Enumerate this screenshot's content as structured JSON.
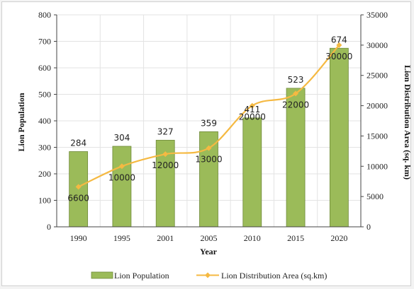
{
  "chart_data": {
    "type": "bar+line",
    "categories": [
      "1990",
      "1995",
      "2001",
      "2005",
      "2010",
      "2015",
      "2020"
    ],
    "xlabel": "Year",
    "ylabel_left": "Lion Population",
    "ylabel_right": "Lion Distribution Area (sq. km)",
    "ylim_left": [
      0,
      800
    ],
    "yticks_left": [
      0,
      100,
      200,
      300,
      400,
      500,
      600,
      700,
      800
    ],
    "ylim_right": [
      0,
      35000
    ],
    "yticks_right": [
      0,
      5000,
      10000,
      15000,
      20000,
      25000,
      30000,
      35000
    ],
    "grid": true,
    "legend_position": "bottom",
    "series": [
      {
        "name": "Lion Population",
        "kind": "bar",
        "axis": "left",
        "color": "#9bbb59",
        "values": [
          284,
          304,
          327,
          359,
          411,
          523,
          674
        ],
        "labels": [
          "284",
          "304",
          "327",
          "359",
          "411",
          "523",
          "674"
        ]
      },
      {
        "name": "Lion Distribution Area (sq.km)",
        "kind": "line",
        "axis": "right",
        "color": "#f5b942",
        "values": [
          6600,
          10000,
          12000,
          13000,
          20000,
          22000,
          30000
        ],
        "labels": [
          "6600",
          "10000",
          "12000",
          "13000",
          "20000",
          "22000",
          "30000"
        ]
      }
    ]
  }
}
